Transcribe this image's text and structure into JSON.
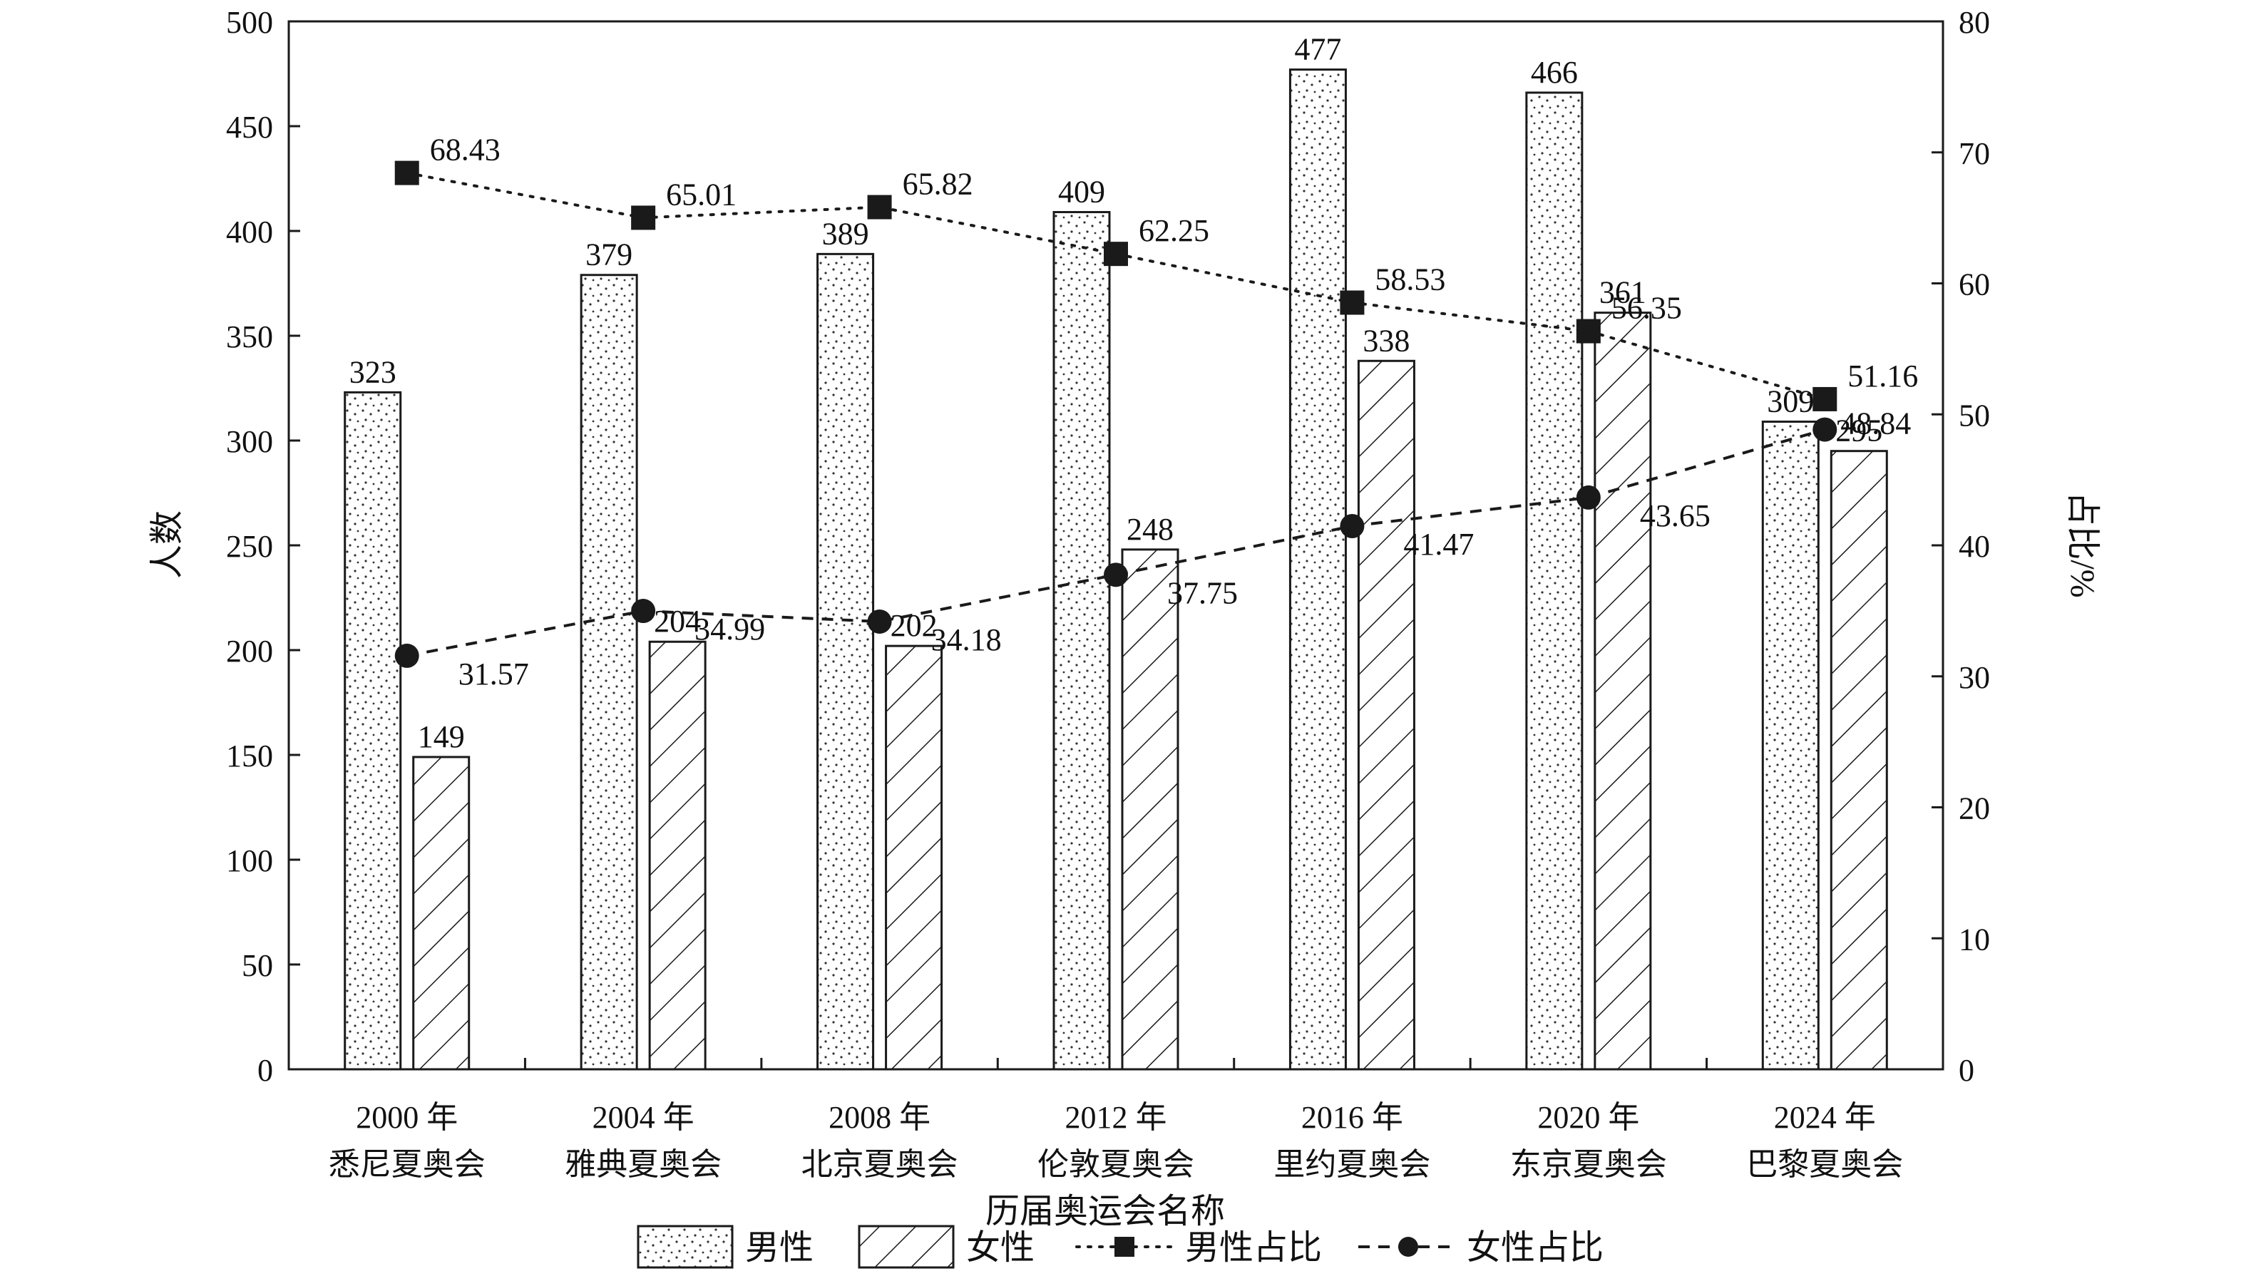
{
  "chart_data": {
    "type": "bar",
    "categories": [
      [
        "2000 年",
        "悉尼夏奥会"
      ],
      [
        "2004 年",
        "雅典夏奥会"
      ],
      [
        "2008 年",
        "北京夏奥会"
      ],
      [
        "2012 年",
        "伦敦夏奥会"
      ],
      [
        "2016 年",
        "里约夏奥会"
      ],
      [
        "2020 年",
        "东京夏奥会"
      ],
      [
        "2024 年",
        "巴黎夏奥会"
      ]
    ],
    "xlabel": "历届奥运会名称",
    "ylabel_left": "人数",
    "ylabel_right": "占比/%",
    "ylim_left": [
      0,
      500
    ],
    "ylim_right": [
      0,
      80
    ],
    "yticks_left": [
      "0",
      "50",
      "100",
      "150",
      "200",
      "250",
      "300",
      "350",
      "400",
      "450",
      "500"
    ],
    "yticks_right": [
      "0",
      "10",
      "20",
      "30",
      "40",
      "50",
      "60",
      "70",
      "80"
    ],
    "series": [
      {
        "name": "男性",
        "kind": "bar",
        "axis": "left",
        "pattern": "dots",
        "values": [
          323,
          379,
          389,
          409,
          477,
          466,
          309
        ],
        "labels": [
          "323",
          "379",
          "389",
          "409",
          "477",
          "466",
          "309"
        ]
      },
      {
        "name": "女性",
        "kind": "bar",
        "axis": "left",
        "pattern": "hatch",
        "values": [
          149,
          204,
          202,
          248,
          338,
          361,
          295
        ],
        "labels": [
          "149",
          "204",
          "202",
          "248",
          "338",
          "361",
          "295"
        ]
      },
      {
        "name": "男性占比",
        "kind": "line",
        "axis": "right",
        "marker": "square",
        "line_style": "dotted",
        "values": [
          68.43,
          65.01,
          65.82,
          62.25,
          58.53,
          56.35,
          51.16
        ],
        "labels": [
          "68.43",
          "65.01",
          "65.82",
          "62.25",
          "58.53",
          "56.35",
          "51.16"
        ]
      },
      {
        "name": "女性占比",
        "kind": "line",
        "axis": "right",
        "marker": "circle",
        "line_style": "dashed",
        "values": [
          31.57,
          34.99,
          34.18,
          37.75,
          41.47,
          43.65,
          48.84
        ],
        "labels": [
          "31.57",
          "34.99",
          "34.18",
          "37.75",
          "41.47",
          "43.65",
          "48.84"
        ]
      }
    ],
    "legend": {
      "placement": "bottom",
      "items": [
        "男性",
        "女性",
        "男性占比",
        "女性占比"
      ]
    },
    "grid": false,
    "colors": {
      "ink": "#1a1a1a",
      "bar_fill": "#ffffff"
    }
  }
}
